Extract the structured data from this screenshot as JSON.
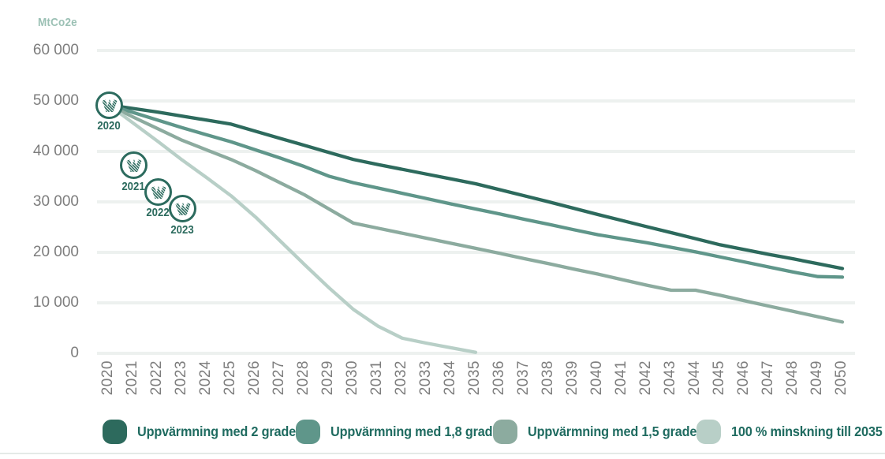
{
  "chart_data": {
    "type": "line",
    "title": "",
    "xlabel": "",
    "ylabel": "MtCo2e",
    "xlim": [
      2020,
      2050
    ],
    "ylim": [
      0,
      60000
    ],
    "grid": "horizontal",
    "legend_position": "bottom",
    "x": [
      2020,
      2021,
      2022,
      2023,
      2024,
      2025,
      2026,
      2027,
      2028,
      2029,
      2030,
      2031,
      2032,
      2033,
      2034,
      2035,
      2036,
      2037,
      2038,
      2039,
      2040,
      2041,
      2042,
      2043,
      2044,
      2045,
      2046,
      2047,
      2048,
      2049,
      2050
    ],
    "y_ticks": [
      {
        "value": 60000,
        "label": "60 000"
      },
      {
        "value": 50000,
        "label": "50 000"
      },
      {
        "value": 40000,
        "label": "40 000"
      },
      {
        "value": 30000,
        "label": "30 000"
      },
      {
        "value": 20000,
        "label": "20 000"
      },
      {
        "value": 10000,
        "label": "10 000"
      },
      {
        "value": 0,
        "label": "0"
      }
    ],
    "series": [
      {
        "name": "Uppvärmning med 2 grader",
        "color": "#2d6a5d",
        "values": [
          49200,
          48500,
          47800,
          47000,
          46200,
          45400,
          44000,
          42600,
          41200,
          39800,
          38400,
          37400,
          36450,
          35500,
          34550,
          33600,
          32400,
          31200,
          30000,
          28750,
          27500,
          26300,
          25100,
          23900,
          22700,
          21500,
          20550,
          19600,
          18700,
          17750,
          16800
        ]
      },
      {
        "name": "Uppvärmning med 1,8 grader",
        "color": "#5f968a",
        "values": [
          49200,
          47700,
          46200,
          44700,
          43300,
          41900,
          40300,
          38700,
          37000,
          35100,
          33800,
          32750,
          31700,
          30650,
          29600,
          28600,
          27600,
          26550,
          25550,
          24500,
          23500,
          22700,
          21900,
          21000,
          20100,
          19100,
          18100,
          17100,
          16100,
          15200,
          15100
        ]
      },
      {
        "name": "Uppvärmning med 1,5 grader",
        "color": "#8cab9f",
        "values": [
          49200,
          46800,
          44500,
          42200,
          40300,
          38400,
          36200,
          33800,
          31400,
          28600,
          25800,
          24800,
          23800,
          22800,
          21800,
          20800,
          19800,
          18750,
          17750,
          16700,
          15700,
          14600,
          13500,
          12500,
          12500,
          11500,
          10400,
          9350,
          8300,
          7250,
          6200
        ]
      },
      {
        "name": "100 % minskning till 2035",
        "color": "#b8cfc7",
        "values": [
          49200,
          45600,
          42000,
          38300,
          34800,
          31200,
          27000,
          22300,
          17600,
          13000,
          8700,
          5400,
          3000,
          2000,
          1100,
          200,
          null,
          null,
          null,
          null,
          null,
          null,
          null,
          null,
          null,
          null,
          null,
          null,
          null,
          null,
          null
        ]
      }
    ],
    "markers": [
      {
        "label": "2020",
        "year": 2020,
        "value": 49200
      },
      {
        "label": "2021",
        "year": 2021,
        "value": 37200
      },
      {
        "label": "2022",
        "year": 2022,
        "value": 32000
      },
      {
        "label": "2023",
        "year": 2023,
        "value": 28600
      }
    ]
  },
  "colors": {
    "grid": "#edf1ef",
    "axis_text": "#7d7d7d",
    "unit_label": "#9cc1b5",
    "legend_text": "#1f6b60",
    "marker": "#2c6b5e",
    "divider": "#e4eae7"
  }
}
